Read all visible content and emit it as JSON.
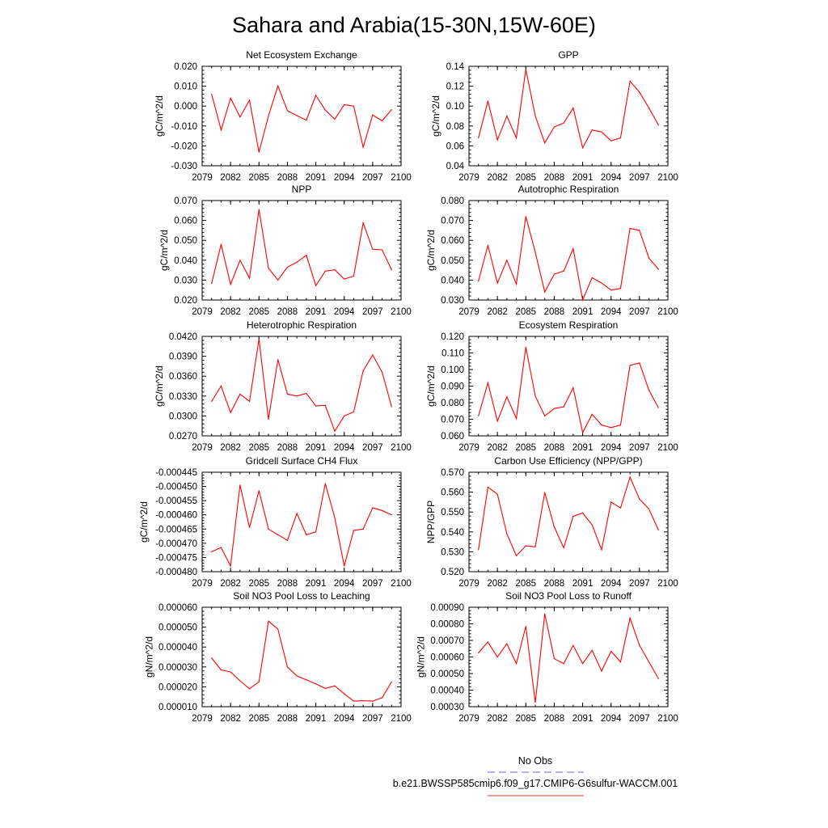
{
  "figure": {
    "title": "Sahara and Arabia(15-30N,15W-60E)",
    "legend": [
      {
        "label": "No Obs",
        "color": "#6464e6",
        "dash": true
      },
      {
        "label": "b.e21.BWSSP585cmip6.f09_g17.CMIP6-G6sulfur-WACCM.001",
        "color": "#e03030",
        "dash": false
      }
    ]
  },
  "chart_data": [
    {
      "type": "line",
      "title": "Net Ecosystem Exchange",
      "ylabel": "gC/m^2/d",
      "xlim": [
        2079,
        2100
      ],
      "ylim": [
        -0.03,
        0.02
      ],
      "xticks": [
        2079,
        2082,
        2085,
        2088,
        2091,
        2094,
        2097,
        2100
      ],
      "xtick_labels": [
        "2079",
        "2082",
        "2085",
        "2088",
        "2091",
        "2094",
        "2097",
        "2100"
      ],
      "yticks": [
        -0.03,
        -0.02,
        -0.01,
        0.0,
        0.01,
        0.02
      ],
      "ytick_labels": [
        "-0.030",
        "-0.020",
        "-0.010",
        "0.000",
        "0.010",
        "0.020"
      ],
      "color": "#ff0000",
      "x": [
        2080,
        2081,
        2082,
        2083,
        2084,
        2085,
        2086,
        2087,
        2088,
        2089,
        2090,
        2091,
        2092,
        2093,
        2094,
        2095,
        2096,
        2097,
        2098,
        2099
      ],
      "y": [
        0.006,
        -0.012,
        0.004,
        -0.0055,
        0.003,
        -0.0232,
        -0.005,
        0.0101,
        -0.0023,
        -0.0048,
        -0.0071,
        0.0054,
        -0.002,
        -0.0066,
        0.0007,
        0.0,
        -0.0207,
        -0.0045,
        -0.0074,
        -0.0018
      ]
    },
    {
      "type": "line",
      "title": "GPP",
      "ylabel": "gC/m^2/d",
      "xlim": [
        2079,
        2100
      ],
      "ylim": [
        0.04,
        0.14
      ],
      "xticks": [
        2079,
        2082,
        2085,
        2088,
        2091,
        2094,
        2097,
        2100
      ],
      "xtick_labels": [
        "2079",
        "2082",
        "2085",
        "2088",
        "2091",
        "2094",
        "2097",
        "2100"
      ],
      "yticks": [
        0.04,
        0.06,
        0.08,
        0.1,
        0.12,
        0.14
      ],
      "ytick_labels": [
        "0.04",
        "0.06",
        "0.08",
        "0.10",
        "0.12",
        "0.14"
      ],
      "color": "#ff0000",
      "x": [
        2080,
        2081,
        2082,
        2083,
        2084,
        2085,
        2086,
        2087,
        2088,
        2089,
        2090,
        2091,
        2092,
        2093,
        2094,
        2095,
        2096,
        2097,
        2098,
        2099
      ],
      "y": [
        0.068,
        0.105,
        0.066,
        0.09,
        0.068,
        0.137,
        0.09,
        0.063,
        0.079,
        0.083,
        0.098,
        0.058,
        0.076,
        0.074,
        0.065,
        0.068,
        0.125,
        0.114,
        0.098,
        0.081
      ]
    },
    {
      "type": "line",
      "title": "NPP",
      "ylabel": "gC/m^2/d",
      "xlim": [
        2079,
        2100
      ],
      "ylim": [
        0.02,
        0.07
      ],
      "xticks": [
        2079,
        2082,
        2085,
        2088,
        2091,
        2094,
        2097,
        2100
      ],
      "xtick_labels": [
        "2079",
        "2082",
        "2085",
        "2088",
        "2091",
        "2094",
        "2097",
        "2100"
      ],
      "yticks": [
        0.02,
        0.03,
        0.04,
        0.05,
        0.06,
        0.07
      ],
      "ytick_labels": [
        "0.020",
        "0.030",
        "0.040",
        "0.050",
        "0.060",
        "0.070"
      ],
      "color": "#ff0000",
      "x": [
        2080,
        2081,
        2082,
        2083,
        2084,
        2085,
        2086,
        2087,
        2088,
        2089,
        2090,
        2091,
        2092,
        2093,
        2094,
        2095,
        2096,
        2097,
        2098,
        2099
      ],
      "y": [
        0.0283,
        0.048,
        0.0278,
        0.04,
        0.031,
        0.0655,
        0.036,
        0.03,
        0.0365,
        0.039,
        0.0425,
        0.0272,
        0.0345,
        0.0352,
        0.0305,
        0.032,
        0.0588,
        0.0455,
        0.0452,
        0.0352
      ]
    },
    {
      "type": "line",
      "title": "Autotrophic Respiration",
      "ylabel": "gC/m^2/d",
      "xlim": [
        2079,
        2100
      ],
      "ylim": [
        0.03,
        0.08
      ],
      "xticks": [
        2079,
        2082,
        2085,
        2088,
        2091,
        2094,
        2097,
        2100
      ],
      "xtick_labels": [
        "2079",
        "2082",
        "2085",
        "2088",
        "2091",
        "2094",
        "2097",
        "2100"
      ],
      "yticks": [
        0.03,
        0.04,
        0.05,
        0.06,
        0.07,
        0.08
      ],
      "ytick_labels": [
        "0.030",
        "0.040",
        "0.050",
        "0.060",
        "0.070",
        "0.080"
      ],
      "color": "#ff0000",
      "x": [
        2080,
        2081,
        2082,
        2083,
        2084,
        2085,
        2086,
        2087,
        2088,
        2089,
        2090,
        2091,
        2092,
        2093,
        2094,
        2095,
        2096,
        2097,
        2098,
        2099
      ],
      "y": [
        0.0395,
        0.0575,
        0.0385,
        0.05,
        0.038,
        0.072,
        0.054,
        0.034,
        0.043,
        0.0445,
        0.0558,
        0.03,
        0.0412,
        0.0385,
        0.035,
        0.0358,
        0.066,
        0.065,
        0.051,
        0.0455
      ]
    },
    {
      "type": "line",
      "title": "Heterotrophic Respiration",
      "ylabel": "gC/m^2/d",
      "xlim": [
        2079,
        2100
      ],
      "ylim": [
        0.027,
        0.042
      ],
      "xticks": [
        2079,
        2082,
        2085,
        2088,
        2091,
        2094,
        2097,
        2100
      ],
      "xtick_labels": [
        "2079",
        "2082",
        "2085",
        "2088",
        "2091",
        "2094",
        "2097",
        "2100"
      ],
      "yticks": [
        0.027,
        0.03,
        0.033,
        0.036,
        0.039,
        0.042
      ],
      "ytick_labels": [
        "0.0270",
        "0.0300",
        "0.0330",
        "0.0360",
        "0.0390",
        "0.0420"
      ],
      "color": "#ff0000",
      "x": [
        2080,
        2081,
        2082,
        2083,
        2084,
        2085,
        2086,
        2087,
        2088,
        2089,
        2090,
        2091,
        2092,
        2093,
        2094,
        2095,
        2096,
        2097,
        2098,
        2099
      ],
      "y": [
        0.0322,
        0.0345,
        0.0305,
        0.0333,
        0.0322,
        0.0416,
        0.0295,
        0.0385,
        0.0333,
        0.033,
        0.0334,
        0.0315,
        0.0316,
        0.0277,
        0.03,
        0.0306,
        0.0368,
        0.0392,
        0.0366,
        0.0314
      ]
    },
    {
      "type": "line",
      "title": "Ecosystem Respiration",
      "ylabel": "gC/m^2/d",
      "xlim": [
        2079,
        2100
      ],
      "ylim": [
        0.06,
        0.12
      ],
      "xticks": [
        2079,
        2082,
        2085,
        2088,
        2091,
        2094,
        2097,
        2100
      ],
      "xtick_labels": [
        "2079",
        "2082",
        "2085",
        "2088",
        "2091",
        "2094",
        "2097",
        "2100"
      ],
      "yticks": [
        0.06,
        0.07,
        0.08,
        0.09,
        0.1,
        0.11,
        0.12
      ],
      "ytick_labels": [
        "0.060",
        "0.070",
        "0.080",
        "0.090",
        "0.100",
        "0.110",
        "0.120"
      ],
      "color": "#ff0000",
      "x": [
        2080,
        2081,
        2082,
        2083,
        2084,
        2085,
        2086,
        2087,
        2088,
        2089,
        2090,
        2091,
        2092,
        2093,
        2094,
        2095,
        2096,
        2097,
        2098,
        2099
      ],
      "y": [
        0.072,
        0.092,
        0.0688,
        0.0835,
        0.0705,
        0.1135,
        0.084,
        0.072,
        0.0765,
        0.0775,
        0.089,
        0.062,
        0.073,
        0.0665,
        0.065,
        0.0665,
        0.1025,
        0.104,
        0.0875,
        0.077
      ]
    },
    {
      "type": "line",
      "title": "Gridcell Surface CH4 Flux",
      "ylabel": "gC/m^2/d",
      "xlim": [
        2079,
        2100
      ],
      "ylim": [
        -0.00048,
        -0.000445
      ],
      "xticks": [
        2079,
        2082,
        2085,
        2088,
        2091,
        2094,
        2097,
        2100
      ],
      "xtick_labels": [
        "2079",
        "2082",
        "2085",
        "2088",
        "2091",
        "2094",
        "2097",
        "2100"
      ],
      "yticks": [
        -0.00048,
        -0.000475,
        -0.00047,
        -0.000465,
        -0.00046,
        -0.000455,
        -0.00045,
        -0.000445
      ],
      "ytick_labels": [
        "-0.000480",
        "-0.000475",
        "-0.000470",
        "-0.000465",
        "-0.000460",
        "-0.000455",
        "-0.000450",
        "-0.000445"
      ],
      "color": "#ff0000",
      "x": [
        2080,
        2081,
        2082,
        2083,
        2084,
        2085,
        2086,
        2087,
        2088,
        2089,
        2090,
        2091,
        2092,
        2093,
        2094,
        2095,
        2096,
        2097,
        2098,
        2099
      ],
      "y": [
        -0.000473,
        -0.0004715,
        -0.000478,
        -0.0004495,
        -0.0004645,
        -0.0004515,
        -0.000465,
        -0.000467,
        -0.000469,
        -0.0004595,
        -0.000467,
        -0.000466,
        -0.000449,
        -0.000461,
        -0.000478,
        -0.0004655,
        -0.000465,
        -0.0004575,
        -0.0004585,
        -0.00046
      ]
    },
    {
      "type": "line",
      "title": "Carbon Use Efficiency (NPP/GPP)",
      "ylabel": "NPP/GPP",
      "xlim": [
        2079,
        2100
      ],
      "ylim": [
        0.52,
        0.57
      ],
      "xticks": [
        2079,
        2082,
        2085,
        2088,
        2091,
        2094,
        2097,
        2100
      ],
      "xtick_labels": [
        "2079",
        "2082",
        "2085",
        "2088",
        "2091",
        "2094",
        "2097",
        "2100"
      ],
      "yticks": [
        0.52,
        0.53,
        0.54,
        0.55,
        0.56,
        0.57
      ],
      "ytick_labels": [
        "0.520",
        "0.530",
        "0.540",
        "0.550",
        "0.560",
        "0.570"
      ],
      "color": "#ff0000",
      "x": [
        2080,
        2081,
        2082,
        2083,
        2084,
        2085,
        2086,
        2087,
        2088,
        2089,
        2090,
        2091,
        2092,
        2093,
        2094,
        2095,
        2096,
        2097,
        2098,
        2099
      ],
      "y": [
        0.531,
        0.5625,
        0.559,
        0.539,
        0.528,
        0.533,
        0.5325,
        0.5598,
        0.5425,
        0.532,
        0.5478,
        0.5495,
        0.5435,
        0.531,
        0.555,
        0.552,
        0.5675,
        0.5565,
        0.5515,
        0.541
      ]
    },
    {
      "type": "line",
      "title": "Soil NO3 Pool Loss to Leaching",
      "ylabel": "gN/m^2/d",
      "xlim": [
        2079,
        2100
      ],
      "ylim": [
        1e-05,
        6e-05
      ],
      "xticks": [
        2079,
        2082,
        2085,
        2088,
        2091,
        2094,
        2097,
        2100
      ],
      "xtick_labels": [
        "2079",
        "2082",
        "2085",
        "2088",
        "2091",
        "2094",
        "2097",
        "2100"
      ],
      "yticks": [
        1e-05,
        2e-05,
        3e-05,
        4e-05,
        5e-05,
        6e-05
      ],
      "ytick_labels": [
        "0.000010",
        "0.000020",
        "0.000030",
        "0.000040",
        "0.000050",
        "0.000060"
      ],
      "color": "#ff0000",
      "x": [
        2080,
        2081,
        2082,
        2083,
        2084,
        2085,
        2086,
        2087,
        2088,
        2089,
        2090,
        2091,
        2092,
        2093,
        2094,
        2095,
        2096,
        2097,
        2098,
        2099
      ],
      "y": [
        3.45e-05,
        2.85e-05,
        2.75e-05,
        2.3e-05,
        1.9e-05,
        2.25e-05,
        5.3e-05,
        4.9e-05,
        3e-05,
        2.55e-05,
        2.35e-05,
        2.15e-05,
        1.92e-05,
        2.05e-05,
        1.65e-05,
        1.28e-05,
        1.3e-05,
        1.28e-05,
        1.45e-05,
        2.25e-05
      ]
    },
    {
      "type": "line",
      "title": "Soil NO3 Pool Loss to Runoff",
      "ylabel": "gN/m^2/d",
      "xlim": [
        2079,
        2100
      ],
      "ylim": [
        0.0003,
        0.0009
      ],
      "xticks": [
        2079,
        2082,
        2085,
        2088,
        2091,
        2094,
        2097,
        2100
      ],
      "xtick_labels": [
        "2079",
        "2082",
        "2085",
        "2088",
        "2091",
        "2094",
        "2097",
        "2100"
      ],
      "yticks": [
        0.0003,
        0.0004,
        0.0005,
        0.0006,
        0.0007,
        0.0008,
        0.0009
      ],
      "ytick_labels": [
        "0.00030",
        "0.00040",
        "0.00050",
        "0.00060",
        "0.00070",
        "0.00080",
        "0.00090"
      ],
      "color": "#ff0000",
      "x": [
        2080,
        2081,
        2082,
        2083,
        2084,
        2085,
        2086,
        2087,
        2088,
        2089,
        2090,
        2091,
        2092,
        2093,
        2094,
        2095,
        2096,
        2097,
        2098,
        2099
      ],
      "y": [
        0.000625,
        0.00069,
        0.0006,
        0.00068,
        0.00056,
        0.000785,
        0.000325,
        0.00086,
        0.00059,
        0.00056,
        0.00067,
        0.00056,
        0.00064,
        0.000515,
        0.000635,
        0.00057,
        0.000835,
        0.00067,
        0.00057,
        0.00047
      ]
    }
  ]
}
